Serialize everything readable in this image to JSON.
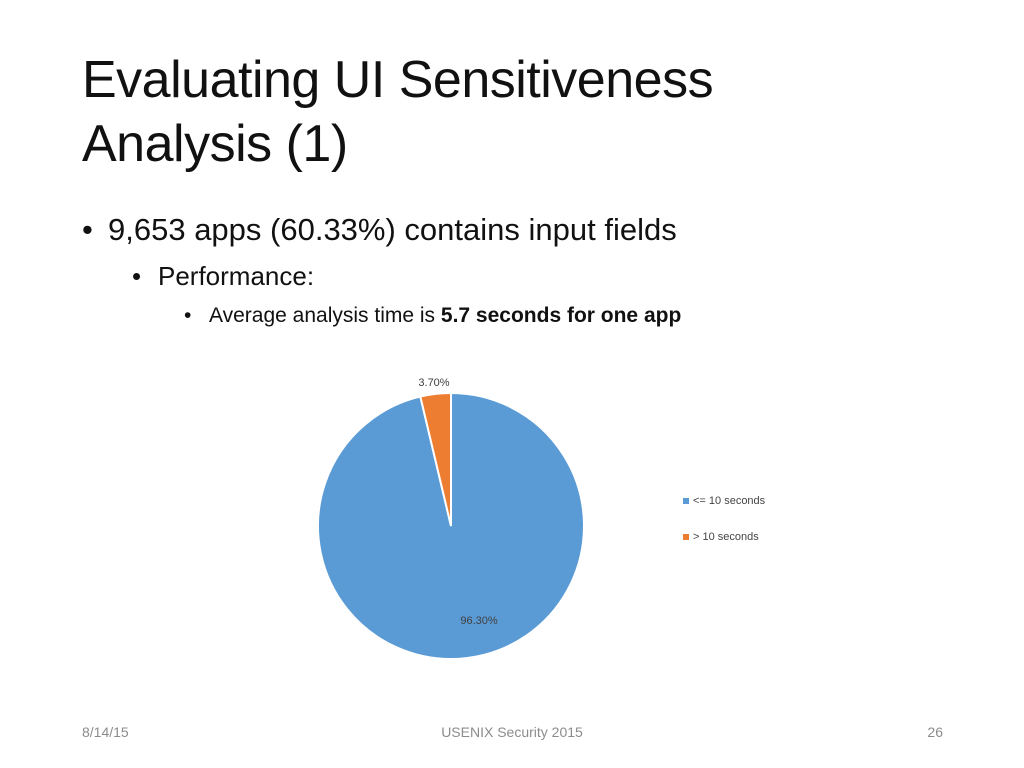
{
  "slide": {
    "title_line1": "Evaluating UI Sensitiveness",
    "title_line2": "Analysis (1)",
    "bullets": {
      "level1": "9,653 apps (60.33%) contains input fields",
      "level2": "Performance:",
      "level3_prefix": "Average analysis time is ",
      "level3_bold": "5.7 seconds for one app"
    },
    "bullet_glyph": "•",
    "footer": {
      "date": "8/14/15",
      "center": "USENIX Security 2015",
      "page": "26"
    }
  },
  "colors": {
    "series_le_10": "#5B9BD5",
    "series_gt_10": "#ED7D31"
  },
  "chart_data": {
    "type": "pie",
    "title": "",
    "categories": [
      "<= 10 seconds",
      "> 10 seconds"
    ],
    "values": [
      96.3,
      3.7
    ],
    "data_labels": [
      "96.30%",
      "3.70%"
    ],
    "colors": [
      "#5B9BD5",
      "#ED7D31"
    ],
    "legend_position": "right",
    "start_angle_deg": 0,
    "direction": "clockwise"
  }
}
